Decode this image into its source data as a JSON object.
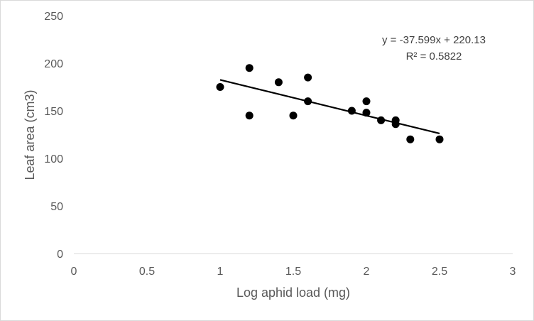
{
  "chart_data": {
    "type": "scatter",
    "xlabel": "Log aphid load (mg)",
    "ylabel": "Leaf area (cm3)",
    "xlim": [
      0,
      3
    ],
    "ylim": [
      0,
      250
    ],
    "x_ticks": [
      "0",
      "0.5",
      "1",
      "1.5",
      "2",
      "2.5",
      "3"
    ],
    "y_ticks": [
      "0",
      "50",
      "100",
      "150",
      "200",
      "250"
    ],
    "x_tick_values": [
      0,
      0.5,
      1,
      1.5,
      2,
      2.5,
      3
    ],
    "y_tick_values": [
      0,
      50,
      100,
      150,
      200,
      250
    ],
    "grid": false,
    "marker_color": "#000000",
    "series": [
      {
        "points": [
          {
            "x": 1.0,
            "y": 175
          },
          {
            "x": 1.2,
            "y": 195
          },
          {
            "x": 1.2,
            "y": 145
          },
          {
            "x": 1.4,
            "y": 180
          },
          {
            "x": 1.5,
            "y": 145
          },
          {
            "x": 1.6,
            "y": 185
          },
          {
            "x": 1.6,
            "y": 160
          },
          {
            "x": 1.9,
            "y": 150
          },
          {
            "x": 2.0,
            "y": 160
          },
          {
            "x": 2.0,
            "y": 148
          },
          {
            "x": 2.1,
            "y": 140
          },
          {
            "x": 2.2,
            "y": 140
          },
          {
            "x": 2.2,
            "y": 136
          },
          {
            "x": 2.3,
            "y": 120
          },
          {
            "x": 2.5,
            "y": 120
          }
        ]
      }
    ],
    "trendline": {
      "type": "linear",
      "slope": -37.599,
      "intercept": 220.13,
      "x_range": [
        1.0,
        2.5
      ],
      "equation": "y = -37.599x + 220.13",
      "r_squared": "R² = 0.5822"
    }
  }
}
